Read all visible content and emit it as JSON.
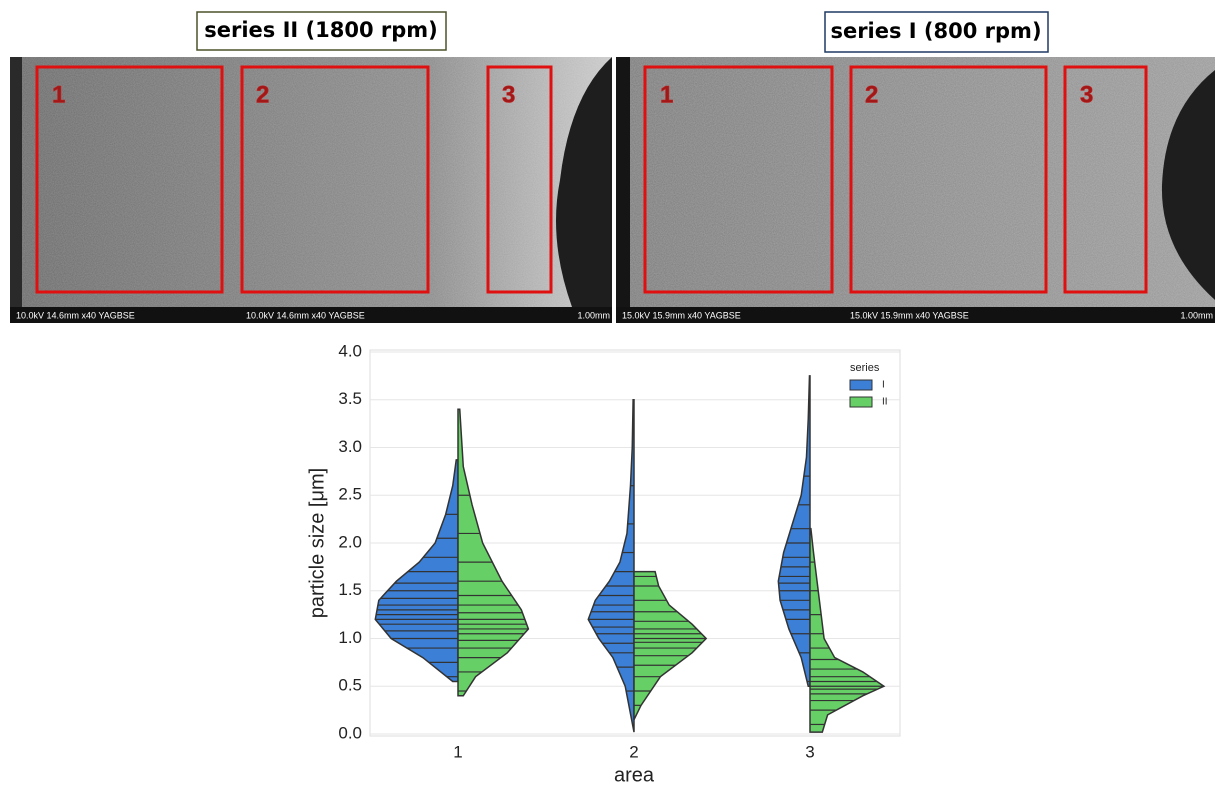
{
  "figure": {
    "panels": [
      {
        "label": "series II (1800 rpm)",
        "regions": [
          "1",
          "2",
          "3"
        ],
        "info": [
          "10.0kV 14.6mm x40 YAGBSE",
          "10.0kV 14.6mm x40 YAGBSE"
        ],
        "scale": "1.00mm"
      },
      {
        "label": "series I (800 rpm)",
        "regions": [
          "1",
          "2",
          "3"
        ],
        "info": [
          "15.0kV 15.9mm x40 YAGBSE",
          "15.0kV 15.9mm x40 YAGBSE"
        ],
        "scale": "1.00mm"
      }
    ]
  },
  "chart_data": {
    "type": "violin",
    "xlabel": "area",
    "ylabel": "particle size [μm]",
    "categories": [
      "1",
      "2",
      "3"
    ],
    "ylim": [
      0,
      4
    ],
    "yticks": [
      {
        "value": 0,
        "label": "0.0"
      },
      {
        "value": 0.5,
        "label": "0.5"
      },
      {
        "value": 1,
        "label": "1.0"
      },
      {
        "value": 1.5,
        "label": "1.5"
      },
      {
        "value": 2,
        "label": "2.0"
      },
      {
        "value": 2.5,
        "label": "2.5"
      },
      {
        "value": 3,
        "label": "3.0"
      },
      {
        "value": 3.5,
        "label": "3.5"
      },
      {
        "value": 4,
        "label": "4.0"
      }
    ],
    "grid": true,
    "legend_title": "series",
    "legend": "upper right",
    "series": [
      {
        "name": "I",
        "color": "#3b7fd6",
        "violins": [
          {
            "y": [
              0.55,
              0.8,
              1.0,
              1.2,
              1.4,
              1.6,
              1.8,
              2.0,
              2.3,
              2.6,
              2.87
            ],
            "width": [
              0.03,
              0.2,
              0.38,
              0.47,
              0.45,
              0.35,
              0.22,
              0.13,
              0.07,
              0.03,
              0.01
            ],
            "observations": [
              0.6,
              0.75,
              0.9,
              1.0,
              1.08,
              1.15,
              1.2,
              1.25,
              1.3,
              1.35,
              1.42,
              1.5,
              1.58,
              1.7,
              1.85,
              2.05,
              2.3
            ]
          },
          {
            "y": [
              0.02,
              0.5,
              0.8,
              1.0,
              1.2,
              1.4,
              1.6,
              1.8,
              2.1,
              2.6,
              3.0,
              3.5
            ],
            "width": [
              0.0,
              0.05,
              0.12,
              0.2,
              0.26,
              0.22,
              0.14,
              0.08,
              0.04,
              0.02,
              0.01,
              0.005
            ],
            "observations": [
              0.45,
              0.7,
              0.85,
              0.95,
              1.05,
              1.12,
              1.2,
              1.28,
              1.35,
              1.45,
              1.55,
              1.7,
              1.9,
              2.2,
              2.6
            ]
          },
          {
            "y": [
              0.5,
              0.8,
              1.1,
              1.4,
              1.6,
              1.9,
              2.2,
              2.5,
              2.9,
              3.3,
              3.75
            ],
            "width": [
              0.01,
              0.05,
              0.12,
              0.17,
              0.18,
              0.15,
              0.1,
              0.05,
              0.02,
              0.01,
              0.003
            ],
            "observations": [
              0.55,
              0.85,
              1.05,
              1.2,
              1.3,
              1.4,
              1.5,
              1.58,
              1.65,
              1.75,
              1.85,
              2.0,
              2.15,
              2.4,
              2.7
            ]
          }
        ]
      },
      {
        "name": "II",
        "color": "#66d066",
        "violins": [
          {
            "y": [
              0.4,
              0.6,
              0.85,
              1.1,
              1.3,
              1.6,
              2.0,
              2.4,
              2.8,
              3.1,
              3.4
            ],
            "width": [
              0.03,
              0.1,
              0.28,
              0.4,
              0.36,
              0.25,
              0.14,
              0.08,
              0.03,
              0.02,
              0.01
            ],
            "observations": [
              0.45,
              0.65,
              0.8,
              0.9,
              0.98,
              1.05,
              1.1,
              1.15,
              1.2,
              1.27,
              1.35,
              1.45,
              1.6,
              1.8,
              2.1,
              2.5
            ]
          },
          {
            "y": [
              0.15,
              0.3,
              0.6,
              0.85,
              1.0,
              1.15,
              1.35,
              1.55,
              1.7
            ],
            "width": [
              0.0,
              0.04,
              0.15,
              0.33,
              0.41,
              0.33,
              0.2,
              0.14,
              0.12
            ],
            "observations": [
              0.3,
              0.45,
              0.6,
              0.72,
              0.82,
              0.9,
              0.96,
              1.0,
              1.05,
              1.1,
              1.18,
              1.28,
              1.4,
              1.55,
              1.65
            ]
          },
          {
            "y": [
              0.02,
              0.2,
              0.4,
              0.5,
              0.65,
              0.8,
              1.0,
              1.3,
              1.6,
              1.9,
              2.15
            ],
            "width": [
              0.07,
              0.1,
              0.3,
              0.42,
              0.3,
              0.14,
              0.08,
              0.06,
              0.04,
              0.02,
              0.005
            ],
            "observations": [
              0.1,
              0.25,
              0.35,
              0.42,
              0.47,
              0.5,
              0.55,
              0.6,
              0.68,
              0.78,
              0.9,
              1.05,
              1.25,
              1.5,
              1.8
            ]
          }
        ]
      }
    ]
  }
}
